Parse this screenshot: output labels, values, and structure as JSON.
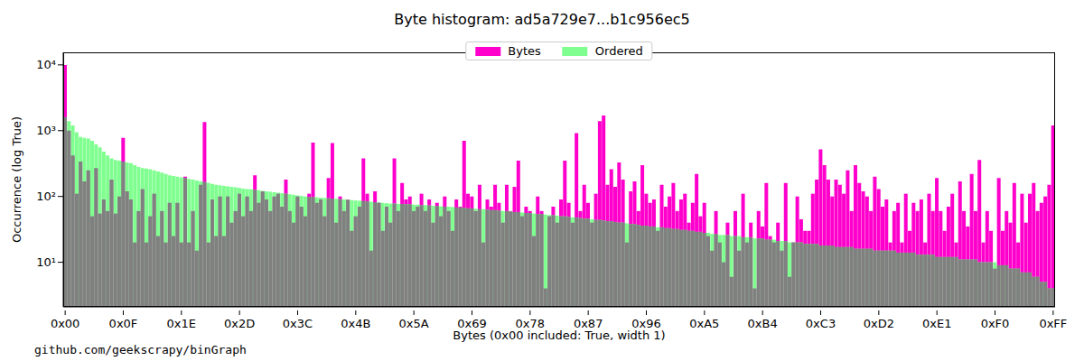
{
  "chart_data": {
    "type": "bar",
    "title": "Byte histogram: ad5a729e7...b1c956ec5",
    "x_label": "Bytes (0x00 included: True, width 1)",
    "y_label": "Occurrence (log True)",
    "annotation": "github.com/geekscrapy/binGraph",
    "log": "y",
    "grid": false,
    "legend": "top",
    "categories": [
      "0x00",
      null,
      null,
      null,
      null,
      null,
      null,
      null,
      null,
      null,
      null,
      null,
      null,
      null,
      null,
      "0x0F",
      null,
      null,
      null,
      null,
      null,
      null,
      null,
      null,
      null,
      null,
      null,
      null,
      null,
      null,
      "0x1E",
      null,
      null,
      null,
      null,
      null,
      null,
      null,
      null,
      null,
      null,
      null,
      null,
      null,
      null,
      "0x2D",
      null,
      null,
      null,
      null,
      null,
      null,
      null,
      null,
      null,
      null,
      null,
      null,
      null,
      null,
      "0x3C",
      null,
      null,
      null,
      null,
      null,
      null,
      null,
      null,
      null,
      null,
      null,
      null,
      null,
      null,
      "0x4B",
      null,
      null,
      null,
      null,
      null,
      null,
      null,
      null,
      null,
      null,
      null,
      null,
      null,
      null,
      "0x5A",
      null,
      null,
      null,
      null,
      null,
      null,
      null,
      null,
      null,
      null,
      null,
      null,
      null,
      null,
      "0x69",
      null,
      null,
      null,
      null,
      null,
      null,
      null,
      null,
      null,
      null,
      null,
      null,
      null,
      null,
      "0x78",
      null,
      null,
      null,
      null,
      null,
      null,
      null,
      null,
      null,
      null,
      null,
      null,
      null,
      null,
      "0x87",
      null,
      null,
      null,
      null,
      null,
      null,
      null,
      null,
      null,
      null,
      null,
      null,
      null,
      null,
      "0x96",
      null,
      null,
      null,
      null,
      null,
      null,
      null,
      null,
      null,
      null,
      null,
      null,
      null,
      null,
      "0xA5",
      null,
      null,
      null,
      null,
      null,
      null,
      null,
      null,
      null,
      null,
      null,
      null,
      null,
      null,
      "0xB4",
      null,
      null,
      null,
      null,
      null,
      null,
      null,
      null,
      null,
      null,
      null,
      null,
      null,
      null,
      "0xC3",
      null,
      null,
      null,
      null,
      null,
      null,
      null,
      null,
      null,
      null,
      null,
      null,
      null,
      null,
      "0xD2",
      null,
      null,
      null,
      null,
      null,
      null,
      null,
      null,
      null,
      null,
      null,
      null,
      null,
      null,
      "0xE1",
      null,
      null,
      null,
      null,
      null,
      null,
      null,
      null,
      null,
      null,
      null,
      null,
      null,
      null,
      "0xF0",
      null,
      null,
      null,
      null,
      null,
      null,
      null,
      null,
      null,
      null,
      null,
      null,
      null,
      null,
      "0xFF"
    ],
    "series": [
      {
        "name": "Bytes",
        "color": "#ff00cc",
        "values": [
          10000,
          1000,
          420,
          110,
          340,
          170,
          250,
          50,
          270,
          55,
          90,
          60,
          180,
          55,
          100,
          780,
          120,
          90,
          20,
          60,
          130,
          20,
          50,
          110,
          25,
          60,
          20,
          80,
          25,
          80,
          20,
          200,
          20,
          60,
          15,
          150,
          1350,
          20,
          90,
          25,
          100,
          25,
          100,
          40,
          60,
          110,
          50,
          100,
          60,
          210,
          80,
          120,
          90,
          60,
          100,
          110,
          70,
          180,
          60,
          40,
          100,
          70,
          50,
          110,
          660,
          80,
          90,
          50,
          190,
          650,
          40,
          100,
          60,
          90,
          30,
          50,
          70,
          380,
          110,
          15,
          120,
          80,
          30,
          70,
          40,
          380,
          60,
          160,
          90,
          100,
          60,
          70,
          110,
          60,
          90,
          40,
          80,
          50,
          100,
          60,
          30,
          90,
          70,
          700,
          110,
          100,
          60,
          150,
          20,
          90,
          70,
          150,
          80,
          40,
          150,
          60,
          140,
          350,
          50,
          70,
          60,
          25,
          100,
          60,
          4,
          50,
          70,
          40,
          90,
          350,
          80,
          40,
          920,
          60,
          150,
          80,
          40,
          110,
          1400,
          1700,
          150,
          260,
          140,
          330,
          180,
          20,
          120,
          170,
          60,
          300,
          110,
          80,
          90,
          30,
          150,
          70,
          100,
          160,
          60,
          90,
          110,
          40,
          80,
          220,
          50,
          80,
          25,
          15,
          60,
          20,
          10,
          40,
          6,
          60,
          15,
          110,
          20,
          40,
          4,
          60,
          35,
          160,
          25,
          20,
          40,
          15,
          160,
          6,
          20,
          100,
          45,
          30,
          30,
          110,
          180,
          520,
          300,
          180,
          100,
          180,
          150,
          110,
          250,
          60,
          300,
          160,
          120,
          100,
          60,
          200,
          130,
          70,
          90,
          20,
          60,
          80,
          20,
          110,
          30,
          80,
          60,
          90,
          20,
          110,
          60,
          190,
          60,
          30,
          70,
          110,
          20,
          170,
          60,
          35,
          220,
          60,
          360,
          20,
          60,
          30,
          8,
          190,
          30,
          60,
          40,
          160,
          20,
          110,
          40,
          110,
          160,
          60,
          80,
          100,
          150,
          1200
        ]
      },
      {
        "name": "Ordered",
        "color": "#80ff90",
        "values": [
          1600,
          1400,
          1200,
          950,
          800,
          780,
          760,
          700,
          620,
          560,
          480,
          420,
          380,
          360,
          350,
          340,
          330,
          320,
          300,
          280,
          270,
          265,
          260,
          250,
          240,
          230,
          220,
          210,
          205,
          200,
          195,
          190,
          185,
          180,
          175,
          170,
          165,
          160,
          155,
          150,
          148,
          145,
          142,
          140,
          138,
          135,
          132,
          130,
          128,
          126,
          124,
          122,
          120,
          118,
          116,
          114,
          112,
          110,
          108,
          106,
          104,
          102,
          100,
          99,
          98,
          97,
          96,
          95,
          94,
          93,
          92,
          91,
          90,
          89,
          88,
          87,
          86,
          85,
          84,
          83,
          82,
          81,
          80,
          79,
          78,
          78,
          77,
          77,
          76,
          76,
          75,
          75,
          74,
          74,
          73,
          72,
          72,
          71,
          70,
          70,
          69,
          68,
          68,
          67,
          66,
          66,
          65,
          64,
          64,
          63,
          62,
          62,
          61,
          60,
          60,
          59,
          58,
          58,
          57,
          56,
          56,
          55,
          54,
          54,
          53,
          52,
          52,
          51,
          50,
          50,
          49,
          48,
          48,
          47,
          46,
          46,
          45,
          44,
          44,
          43,
          42,
          42,
          41,
          40,
          40,
          39,
          38,
          38,
          37,
          36,
          36,
          35,
          35,
          34,
          34,
          33,
          33,
          32,
          32,
          31,
          31,
          30,
          30,
          29,
          29,
          28,
          28,
          27,
          27,
          26,
          26,
          26,
          25,
          25,
          25,
          24,
          24,
          24,
          23,
          23,
          23,
          22,
          22,
          22,
          21,
          21,
          21,
          20,
          20,
          20,
          20,
          19,
          19,
          19,
          19,
          18,
          18,
          18,
          18,
          17,
          17,
          17,
          17,
          17,
          16,
          16,
          16,
          16,
          16,
          15,
          15,
          15,
          15,
          15,
          15,
          14,
          14,
          14,
          14,
          14,
          13,
          13,
          13,
          13,
          13,
          12,
          12,
          12,
          12,
          12,
          12,
          11,
          11,
          11,
          11,
          11,
          10,
          10,
          10,
          10,
          10,
          9,
          9,
          9,
          8,
          8,
          8,
          7,
          7,
          7,
          6,
          6,
          5,
          5,
          4,
          4
        ]
      }
    ],
    "ylim": [
      2.1,
      15500
    ],
    "yticks": [
      {
        "value": 10,
        "label": "10¹"
      },
      {
        "value": 100,
        "label": "10²"
      },
      {
        "value": 1000,
        "label": "10³"
      },
      {
        "value": 10000,
        "label": "10⁴"
      }
    ]
  }
}
